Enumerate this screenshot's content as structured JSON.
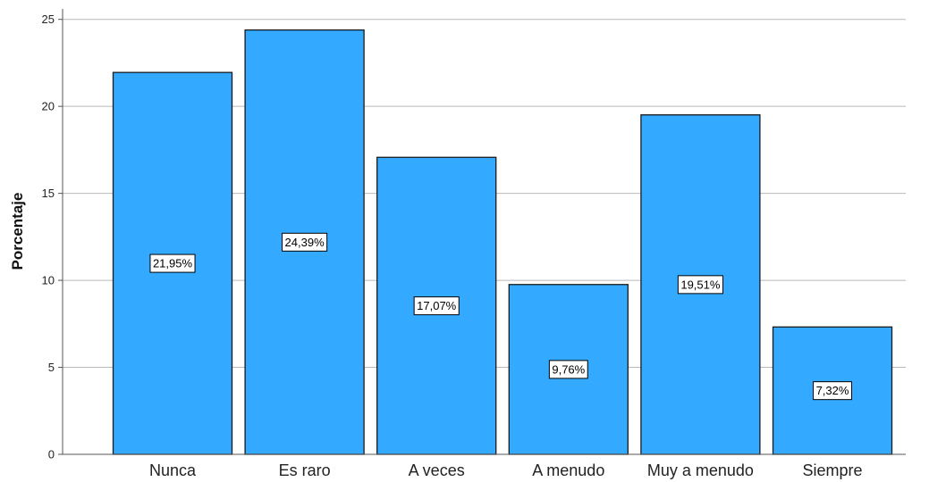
{
  "chart_data": {
    "type": "bar",
    "categories": [
      "Nunca",
      "Es raro",
      "A veces",
      "A menudo",
      "Muy a menudo",
      "Siempre"
    ],
    "values": [
      21.95,
      24.39,
      17.07,
      9.76,
      19.51,
      7.32
    ],
    "data_labels": [
      "21,95%",
      "24,39%",
      "17,07%",
      "9,76%",
      "19,51%",
      "7,32%"
    ],
    "title": "",
    "xlabel": "",
    "ylabel": "Porcentaje",
    "ylim": [
      0,
      25.6
    ],
    "yticks": [
      0,
      5,
      10,
      15,
      20,
      25
    ],
    "ytick_labels": [
      "0",
      "5",
      "10",
      "15",
      "20",
      "25"
    ],
    "grid": "horizontal",
    "legend": "none",
    "colors": {
      "bar_fill": "#33aaff",
      "bar_stroke": "#1a1a1a",
      "gridline": "#b9b9b9",
      "axis": "#555555",
      "label_box_fill": "#ffffff",
      "label_box_stroke": "#000000"
    }
  }
}
